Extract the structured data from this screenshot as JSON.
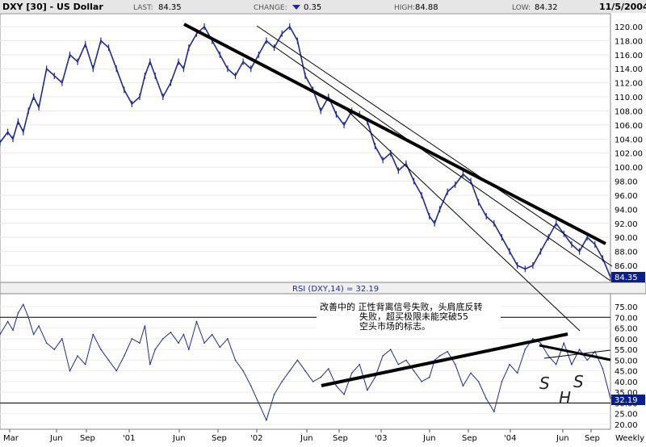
{
  "header": {
    "ticker": "DXY [30] - US Dollar",
    "last_label": "LAST:",
    "last_value": "84.35",
    "change_label": "CHANGE:",
    "change_value": "0.35",
    "high_label": "HIGH:",
    "high_value": "84.88",
    "low_label": "LOW:",
    "low_value": "84.32",
    "date": "11/5/2004"
  },
  "rsi_header": "RSI (DXY,14) = 32.19",
  "annotation": {
    "line1": "改善中的 正性背离信号失败，头肩底反转",
    "line2": "失败，超买极限未能突破55",
    "line3": "空头市场的标志。"
  },
  "hs_labels": [
    "S",
    "H",
    "S"
  ],
  "x_axis": {
    "labels": [
      "Mar",
      "Jun",
      "Sep",
      "'01",
      "Jun",
      "Sep",
      "'02",
      "Jun",
      "Sep",
      "'03",
      "Jun",
      "Sep",
      "'04",
      "Jun",
      "Sep"
    ],
    "period": "Weekly"
  },
  "colors": {
    "price_line": "#1f2a9a",
    "rsi_line": "#1f2a9a",
    "trendline": "#000000",
    "header_bg": "#e6e6e6",
    "badge_bg": "#0a1f8f"
  },
  "chart_data": [
    {
      "type": "line",
      "name": "price",
      "x_range": [
        "Mar 2000",
        "Nov 2004"
      ],
      "ylim": [
        84,
        121
      ],
      "y_ticks": [
        "120.00",
        "118.00",
        "116.00",
        "114.00",
        "112.00",
        "110.00",
        "108.00",
        "106.00",
        "104.00",
        "102.00",
        "100.00",
        "98.00",
        "96.00",
        "94.00",
        "92.00",
        "90.00",
        "88.00",
        "86.00"
      ],
      "last_badge": "84.35",
      "x": [
        0,
        3,
        5,
        7,
        9,
        11,
        13,
        15,
        18,
        21,
        24,
        27,
        30,
        33,
        36,
        39,
        42,
        45,
        48,
        51,
        54,
        56,
        58,
        60,
        63,
        66,
        69,
        71,
        73,
        76,
        79,
        82,
        85,
        88,
        91,
        94,
        97,
        100,
        103,
        106,
        109,
        112,
        115,
        118,
        121,
        124,
        127,
        130,
        133,
        136,
        139,
        142,
        145,
        148,
        151,
        154,
        157,
        160,
        163,
        166,
        168,
        170,
        173,
        176,
        179,
        182,
        185,
        188,
        191,
        194,
        197,
        200,
        203,
        206,
        209,
        212,
        215,
        218,
        221,
        224,
        227,
        230,
        233,
        236
      ],
      "values": [
        103.5,
        105,
        104,
        106.5,
        105,
        108,
        110,
        108.5,
        114,
        113,
        112,
        116,
        115,
        117.5,
        114,
        118,
        117,
        114,
        111,
        109,
        110,
        113,
        115,
        113,
        110,
        112,
        115,
        114,
        117,
        119,
        120,
        118,
        116,
        114,
        113,
        115,
        114,
        116,
        118,
        117,
        119,
        120,
        118,
        113,
        111,
        108,
        110,
        107.5,
        106,
        108,
        107.5,
        106.5,
        103,
        101,
        102,
        99.5,
        100.5,
        98,
        96,
        93,
        92,
        94,
        96.5,
        97.5,
        99,
        98,
        95,
        93,
        92,
        90,
        88,
        86,
        85.5,
        86,
        88,
        90,
        92,
        90.5,
        89,
        88,
        90,
        89,
        87,
        84.35
      ]
    },
    {
      "type": "line",
      "name": "RSI (DXY,14)",
      "ylim": [
        20,
        78
      ],
      "y_ticks": [
        "75.00",
        "70.00",
        "65.00",
        "60.00",
        "55.00",
        "50.00",
        "45.00",
        "40.00",
        "35.00",
        "30.00",
        "25.00",
        "20.00"
      ],
      "reference_lines": [
        70,
        30
      ],
      "last_badge": "32.19",
      "x": [
        0,
        3,
        5,
        7,
        9,
        11,
        13,
        15,
        18,
        21,
        24,
        27,
        30,
        33,
        36,
        39,
        42,
        45,
        48,
        51,
        54,
        56,
        58,
        60,
        63,
        66,
        69,
        71,
        73,
        76,
        79,
        82,
        85,
        88,
        91,
        94,
        97,
        100,
        103,
        106,
        109,
        112,
        115,
        118,
        121,
        124,
        127,
        130,
        133,
        136,
        139,
        142,
        145,
        148,
        151,
        154,
        157,
        160,
        163,
        166,
        168,
        170,
        173,
        176,
        179,
        182,
        185,
        188,
        191,
        194,
        197,
        200,
        203,
        206,
        209,
        212,
        215,
        218,
        221,
        224,
        227,
        230,
        233,
        236
      ],
      "values": [
        62,
        68,
        64,
        72,
        76,
        70,
        62,
        66,
        58,
        55,
        60,
        45,
        52,
        48,
        62,
        55,
        50,
        45,
        52,
        60,
        58,
        66,
        48,
        55,
        60,
        63,
        58,
        62,
        55,
        68,
        58,
        62,
        56,
        60,
        50,
        45,
        38,
        30,
        22,
        34,
        40,
        45,
        50,
        45,
        40,
        42,
        46,
        38,
        34,
        44,
        48,
        36,
        42,
        52,
        55,
        48,
        50,
        45,
        40,
        42,
        50,
        52,
        54,
        48,
        38,
        44,
        40,
        32,
        26,
        40,
        48,
        44,
        55,
        60,
        58,
        52,
        48,
        58,
        48,
        55,
        50,
        54,
        46,
        32.19
      ]
    }
  ]
}
